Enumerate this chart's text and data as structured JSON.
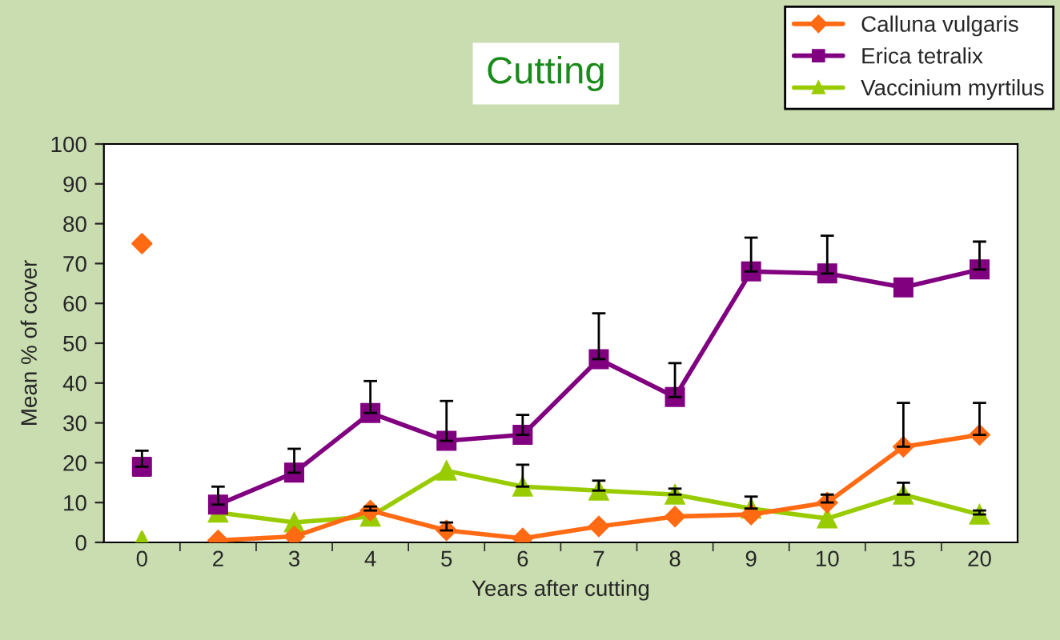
{
  "chart_data": {
    "type": "line",
    "title": "Cutting",
    "xlabel": "Years after cutting",
    "ylabel": "Mean % of cover",
    "categories": [
      "0",
      "2",
      "3",
      "4",
      "5",
      "6",
      "7",
      "8",
      "9",
      "10",
      "15",
      "20"
    ],
    "ylim": [
      0,
      100
    ],
    "yticks": [
      0,
      10,
      20,
      30,
      40,
      50,
      60,
      70,
      80,
      90,
      100
    ],
    "grid": false,
    "legend": "top right",
    "series": [
      {
        "name": "Calluna vulgaris",
        "color": "#ff6a13",
        "marker": "diamond",
        "values": [
          null,
          0.5,
          1.5,
          8,
          3,
          1,
          4,
          6.5,
          7,
          10,
          24,
          27
        ],
        "errors": [
          null,
          null,
          null,
          [
            8,
            9
          ],
          [
            3,
            5
          ],
          null,
          null,
          null,
          null,
          [
            10,
            12
          ],
          [
            24,
            35
          ],
          [
            27,
            35
          ]
        ]
      },
      {
        "name": "Erica tetralix",
        "color": "#800080",
        "marker": "square",
        "values": [
          null,
          9.5,
          17.5,
          32.5,
          25.5,
          27,
          46,
          36.5,
          68,
          67.5,
          64,
          68.5
        ],
        "errors": [
          null,
          [
            9.5,
            14
          ],
          [
            17.5,
            23.5
          ],
          [
            32.5,
            40.5
          ],
          [
            25.5,
            35.5
          ],
          [
            27,
            32
          ],
          [
            46,
            57.5
          ],
          [
            36.5,
            45
          ],
          [
            68,
            76.5
          ],
          [
            67.5,
            77
          ],
          null,
          [
            68.5,
            75.5
          ]
        ]
      },
      {
        "name": "Vaccinium myrtilus",
        "color": "#99cc00",
        "marker": "triangle",
        "values": [
          null,
          7.5,
          5,
          6.5,
          18,
          14,
          13,
          12,
          8.5,
          6,
          12,
          7
        ],
        "errors": [
          null,
          null,
          null,
          null,
          null,
          [
            14,
            19.5
          ],
          [
            13,
            15.5
          ],
          [
            12,
            13.5
          ],
          [
            8.5,
            11.5
          ],
          null,
          [
            12,
            15
          ],
          [
            7,
            8
          ]
        ]
      },
      {
        "type": "scatter",
        "color": "#ff6a13",
        "marker": "diamond",
        "x": [
          "0"
        ],
        "values": [
          75
        ]
      },
      {
        "type": "scatter",
        "color": "#800080",
        "marker": "square",
        "x": [
          "0"
        ],
        "values": [
          19
        ],
        "errors": [
          [
            19,
            23
          ]
        ]
      },
      {
        "type": "scatter",
        "color": "#99cc00",
        "marker": "triangle",
        "x": [
          "0"
        ],
        "values": [
          0.5
        ]
      }
    ]
  }
}
